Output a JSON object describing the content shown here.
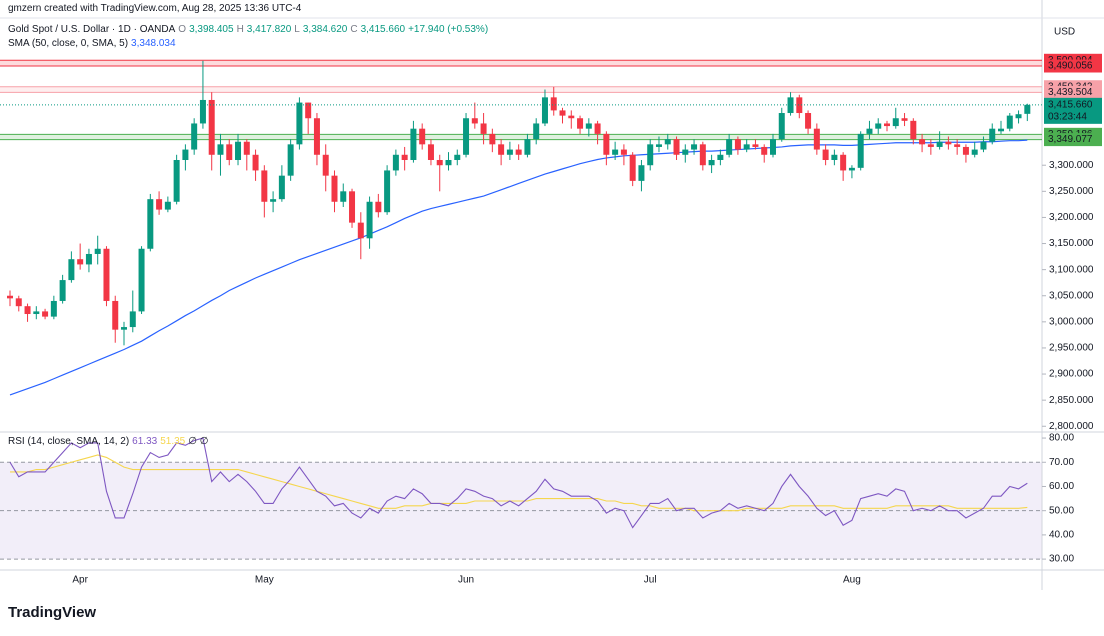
{
  "chart_data": {
    "type": "candlestick",
    "header": "gmzern created with TradingView.com, Aug 28, 2025 13:36 UTC-4",
    "brand": "TradingView",
    "currency": "USD",
    "legend": {
      "symbol": "Gold Spot / U.S. Dollar · 1D · OANDA",
      "items": [
        {
          "key": "O",
          "value": "3,398.405"
        },
        {
          "key": "H",
          "value": "3,417.820"
        },
        {
          "key": "L",
          "value": "3,384.620"
        },
        {
          "key": "C",
          "value": "3,415.660"
        }
      ],
      "change": "+17.940 (+0.53%)"
    },
    "colors": {
      "up": "#089981",
      "down": "#f23645"
    },
    "categories": [
      null,
      null,
      null,
      null,
      null,
      null,
      null,
      null,
      "Apr",
      null,
      null,
      null,
      null,
      null,
      null,
      null,
      null,
      null,
      null,
      null,
      null,
      null,
      null,
      null,
      null,
      null,
      null,
      null,
      null,
      "May",
      null,
      null,
      null,
      null,
      null,
      null,
      null,
      null,
      null,
      null,
      null,
      null,
      null,
      null,
      null,
      null,
      null,
      null,
      null,
      null,
      null,
      null,
      "Jun",
      null,
      null,
      null,
      null,
      null,
      null,
      null,
      null,
      null,
      null,
      null,
      null,
      null,
      null,
      null,
      null,
      null,
      null,
      null,
      null,
      "Jul",
      null,
      null,
      null,
      null,
      null,
      null,
      null,
      null,
      null,
      null,
      null,
      null,
      null,
      null,
      null,
      null,
      null,
      null,
      null,
      null,
      null,
      null,
      "Aug",
      null,
      null,
      null,
      null,
      null,
      null,
      null,
      null,
      null,
      null,
      null,
      null,
      null,
      null,
      null,
      null,
      null,
      null,
      null,
      null
    ],
    "candles": [
      [
        3050,
        3060,
        3030,
        3045
      ],
      [
        3045,
        3050,
        3020,
        3030
      ],
      [
        3030,
        3035,
        3000,
        3015
      ],
      [
        3015,
        3030,
        3005,
        3020
      ],
      [
        3020,
        3025,
        3005,
        3010
      ],
      [
        3010,
        3050,
        3005,
        3040
      ],
      [
        3040,
        3090,
        3035,
        3080
      ],
      [
        3080,
        3135,
        3075,
        3120
      ],
      [
        3120,
        3150,
        3100,
        3110
      ],
      [
        3110,
        3140,
        3095,
        3130
      ],
      [
        3130,
        3165,
        3110,
        3140
      ],
      [
        3140,
        3145,
        3030,
        3040
      ],
      [
        3040,
        3050,
        2960,
        2985
      ],
      [
        2985,
        3000,
        2955,
        2990
      ],
      [
        2990,
        3060,
        2980,
        3020
      ],
      [
        3020,
        3145,
        3015,
        3140
      ],
      [
        3140,
        3245,
        3135,
        3235
      ],
      [
        3235,
        3250,
        3205,
        3215
      ],
      [
        3215,
        3240,
        3210,
        3230
      ],
      [
        3230,
        3320,
        3225,
        3310
      ],
      [
        3310,
        3340,
        3290,
        3330
      ],
      [
        3330,
        3390,
        3320,
        3380
      ],
      [
        3380,
        3500,
        3370,
        3425
      ],
      [
        3425,
        3440,
        3290,
        3320
      ],
      [
        3320,
        3360,
        3280,
        3340
      ],
      [
        3340,
        3350,
        3300,
        3310
      ],
      [
        3310,
        3360,
        3300,
        3345
      ],
      [
        3345,
        3350,
        3290,
        3320
      ],
      [
        3320,
        3330,
        3270,
        3290
      ],
      [
        3290,
        3300,
        3200,
        3230
      ],
      [
        3230,
        3250,
        3210,
        3235
      ],
      [
        3235,
        3300,
        3230,
        3280
      ],
      [
        3280,
        3350,
        3270,
        3340
      ],
      [
        3340,
        3430,
        3330,
        3420
      ],
      [
        3420,
        3420,
        3360,
        3390
      ],
      [
        3390,
        3400,
        3300,
        3320
      ],
      [
        3320,
        3340,
        3250,
        3280
      ],
      [
        3280,
        3290,
        3210,
        3230
      ],
      [
        3230,
        3265,
        3220,
        3250
      ],
      [
        3250,
        3255,
        3180,
        3190
      ],
      [
        3190,
        3210,
        3120,
        3160
      ],
      [
        3160,
        3240,
        3140,
        3230
      ],
      [
        3230,
        3245,
        3200,
        3210
      ],
      [
        3210,
        3300,
        3205,
        3290
      ],
      [
        3290,
        3330,
        3280,
        3320
      ],
      [
        3320,
        3335,
        3290,
        3310
      ],
      [
        3310,
        3385,
        3305,
        3370
      ],
      [
        3370,
        3380,
        3330,
        3340
      ],
      [
        3340,
        3350,
        3300,
        3310
      ],
      [
        3310,
        3320,
        3250,
        3300
      ],
      [
        3300,
        3325,
        3290,
        3310
      ],
      [
        3310,
        3330,
        3300,
        3320
      ],
      [
        3320,
        3400,
        3315,
        3390
      ],
      [
        3390,
        3420,
        3370,
        3380
      ],
      [
        3380,
        3400,
        3340,
        3360
      ],
      [
        3360,
        3370,
        3325,
        3340
      ],
      [
        3340,
        3350,
        3300,
        3320
      ],
      [
        3320,
        3345,
        3310,
        3330
      ],
      [
        3330,
        3340,
        3310,
        3320
      ],
      [
        3320,
        3360,
        3315,
        3350
      ],
      [
        3350,
        3390,
        3340,
        3380
      ],
      [
        3380,
        3445,
        3375,
        3430
      ],
      [
        3430,
        3450,
        3395,
        3405
      ],
      [
        3405,
        3410,
        3380,
        3395
      ],
      [
        3395,
        3405,
        3370,
        3390
      ],
      [
        3390,
        3395,
        3360,
        3370
      ],
      [
        3370,
        3390,
        3355,
        3380
      ],
      [
        3380,
        3385,
        3340,
        3360
      ],
      [
        3360,
        3365,
        3300,
        3320
      ],
      [
        3320,
        3345,
        3310,
        3330
      ],
      [
        3330,
        3340,
        3300,
        3320
      ],
      [
        3320,
        3325,
        3260,
        3270
      ],
      [
        3270,
        3310,
        3250,
        3300
      ],
      [
        3300,
        3350,
        3290,
        3340
      ],
      [
        3335,
        3355,
        3325,
        3340
      ],
      [
        3340,
        3360,
        3330,
        3350
      ],
      [
        3350,
        3355,
        3310,
        3320
      ],
      [
        3320,
        3340,
        3305,
        3330
      ],
      [
        3330,
        3350,
        3320,
        3340
      ],
      [
        3340,
        3345,
        3290,
        3300
      ],
      [
        3300,
        3320,
        3285,
        3310
      ],
      [
        3310,
        3330,
        3300,
        3320
      ],
      [
        3320,
        3360,
        3315,
        3350
      ],
      [
        3350,
        3355,
        3320,
        3330
      ],
      [
        3330,
        3350,
        3325,
        3340
      ],
      [
        3340,
        3350,
        3330,
        3335
      ],
      [
        3335,
        3340,
        3305,
        3320
      ],
      [
        3320,
        3360,
        3315,
        3350
      ],
      [
        3350,
        3410,
        3345,
        3400
      ],
      [
        3400,
        3440,
        3395,
        3430
      ],
      [
        3430,
        3435,
        3390,
        3400
      ],
      [
        3400,
        3405,
        3360,
        3370
      ],
      [
        3370,
        3380,
        3320,
        3330
      ],
      [
        3330,
        3340,
        3300,
        3310
      ],
      [
        3310,
        3330,
        3300,
        3320
      ],
      [
        3320,
        3325,
        3270,
        3290
      ],
      [
        3290,
        3300,
        3275,
        3295
      ],
      [
        3295,
        3365,
        3290,
        3360
      ],
      [
        3360,
        3385,
        3350,
        3370
      ],
      [
        3370,
        3390,
        3360,
        3380
      ],
      [
        3380,
        3385,
        3365,
        3375
      ],
      [
        3375,
        3410,
        3370,
        3390
      ],
      [
        3390,
        3400,
        3375,
        3385
      ],
      [
        3385,
        3390,
        3340,
        3350
      ],
      [
        3350,
        3360,
        3325,
        3340
      ],
      [
        3340,
        3350,
        3320,
        3335
      ],
      [
        3335,
        3365,
        3330,
        3345
      ],
      [
        3345,
        3355,
        3330,
        3340
      ],
      [
        3340,
        3350,
        3320,
        3335
      ],
      [
        3335,
        3340,
        3305,
        3320
      ],
      [
        3320,
        3345,
        3315,
        3330
      ],
      [
        3330,
        3355,
        3325,
        3345
      ],
      [
        3345,
        3380,
        3340,
        3370
      ],
      [
        3365,
        3385,
        3360,
        3370
      ],
      [
        3370,
        3400,
        3365,
        3395
      ],
      [
        3390,
        3405,
        3380,
        3397.72
      ],
      [
        3398.405,
        3417.82,
        3384.62,
        3415.66
      ]
    ],
    "sma": {
      "name": "SMA (50, close, 0, SMA, 5)",
      "value_label": "3,348.034",
      "color": "#2962ff",
      "values": [
        2860,
        2866,
        2872,
        2878,
        2884,
        2891,
        2898,
        2905,
        2912,
        2919,
        2926,
        2933,
        2940,
        2947,
        2955,
        2963,
        2973,
        2983,
        2992,
        3002,
        3012,
        3021,
        3031,
        3041,
        3050,
        3060,
        3068,
        3076,
        3084,
        3091,
        3098,
        3105,
        3112,
        3119,
        3125,
        3131,
        3137,
        3143,
        3149,
        3155,
        3161,
        3168,
        3175,
        3182,
        3190,
        3198,
        3205,
        3212,
        3217,
        3221,
        3225,
        3229,
        3233,
        3237,
        3241,
        3247,
        3253,
        3259,
        3265,
        3271,
        3277,
        3283,
        3288,
        3293,
        3298,
        3303,
        3307,
        3311,
        3314,
        3316,
        3318,
        3319,
        3320,
        3321,
        3322,
        3323,
        3324,
        3325,
        3326,
        3327,
        3327,
        3328,
        3329,
        3330,
        3331,
        3332,
        3333,
        3334,
        3335,
        3337,
        3338,
        3339,
        3339,
        3339,
        3339,
        3338,
        3338,
        3339,
        3340,
        3341,
        3342,
        3343,
        3343,
        3343,
        3343,
        3343,
        3344,
        3344,
        3344,
        3344,
        3344,
        3345,
        3345,
        3346,
        3347,
        3347,
        3348.034
      ]
    },
    "ylim": [
      2789,
      3582
    ],
    "yticks": [
      {
        "value": 3300,
        "label": "3,300.000"
      },
      {
        "value": 3250,
        "label": "3,250.000"
      },
      {
        "value": 3200,
        "label": "3,200.000"
      },
      {
        "value": 3150,
        "label": "3,150.000"
      },
      {
        "value": 3100,
        "label": "3,100.000"
      },
      {
        "value": 3050,
        "label": "3,050.000"
      },
      {
        "value": 3000,
        "label": "3,000.000"
      },
      {
        "value": 2950,
        "label": "2,950.000"
      },
      {
        "value": 2900,
        "label": "2,900.000"
      },
      {
        "value": 2850,
        "label": "2,850.000"
      },
      {
        "value": 2800,
        "label": "2,800.000"
      }
    ],
    "zones": [
      {
        "upper": {
          "value": 3500.994,
          "label": "3,500.994"
        },
        "lower": {
          "value": 3490.056,
          "label": "3,490.056"
        },
        "color": "#f23645"
      },
      {
        "upper": {
          "value": 3450.342,
          "label": "3,450.342"
        },
        "lower": {
          "value": 3439.504,
          "label": "3,439.504"
        },
        "color": "#f7a1a8"
      },
      {
        "upper": {
          "value": 3359.186,
          "label": "3,359.186"
        },
        "lower": {
          "value": 3349.077,
          "label": "3,349.077"
        },
        "color": "#4caf50"
      }
    ],
    "last_price": {
      "value": 3415.66,
      "label": "3,415.660",
      "countdown": "03:23:44",
      "color": "#089981"
    },
    "rsi": {
      "name": "RSI (14, close, SMA, 14, 2)",
      "last_labels": [
        "61.33",
        "51.35"
      ],
      "extra": "∅ ∅",
      "color": "#7e57c2",
      "sma_color": "#f5d64e",
      "values": [
        70,
        64,
        66,
        66,
        66,
        70,
        74,
        78,
        76,
        78,
        78,
        58,
        47,
        47,
        57,
        68,
        74,
        72,
        73,
        78,
        77,
        79,
        80,
        62,
        66,
        62,
        65,
        62,
        58,
        53,
        53,
        59,
        63,
        68,
        63,
        58,
        56,
        52,
        53,
        49,
        47,
        51,
        49,
        54,
        56,
        55,
        59,
        57,
        53,
        53,
        52,
        55,
        59,
        58,
        56,
        55,
        52,
        54,
        52,
        55,
        58,
        63,
        59,
        58,
        56,
        56,
        56,
        54,
        49,
        51,
        50,
        43,
        48,
        53,
        53,
        55,
        50,
        51,
        51,
        47,
        49,
        50,
        53,
        51,
        52,
        51,
        50,
        53,
        60,
        65,
        60,
        56,
        51,
        48,
        50,
        44,
        46,
        55,
        56,
        57,
        56,
        59,
        58,
        50,
        51,
        50,
        52,
        50,
        50,
        47,
        49,
        51,
        56,
        56,
        60,
        59,
        61.33
      ],
      "sma_values": [
        66,
        66,
        66,
        67,
        67,
        68,
        69,
        70,
        71,
        72,
        73,
        72,
        70,
        68,
        67,
        67,
        67,
        67,
        67,
        67,
        67,
        67,
        67,
        67,
        67,
        67,
        67,
        66,
        65,
        64,
        63,
        62,
        61,
        60,
        59,
        58,
        57,
        56,
        55,
        54,
        53,
        52,
        51,
        51,
        51,
        52,
        52,
        52,
        53,
        53,
        53,
        53,
        53,
        54,
        54,
        54,
        54,
        54,
        54,
        54,
        55,
        55,
        55,
        55,
        55,
        55,
        55,
        55,
        54,
        54,
        53,
        53,
        52,
        52,
        51,
        51,
        51,
        51,
        50,
        50,
        50,
        50,
        50,
        50,
        51,
        51,
        51,
        51,
        51,
        52,
        52,
        52,
        52,
        52,
        52,
        51,
        51,
        51,
        51,
        51,
        51,
        52,
        52,
        52,
        52,
        52,
        52,
        52,
        51,
        51,
        51,
        51,
        51,
        51,
        51,
        51,
        51.35
      ],
      "ylim": [
        25.5,
        82.5
      ],
      "yticks": [
        {
          "value": 80,
          "label": "80.00"
        },
        {
          "value": 70,
          "label": "70.00"
        },
        {
          "value": 60,
          "label": "60.00"
        },
        {
          "value": 50,
          "label": "50.00"
        },
        {
          "value": 40,
          "label": "40.00"
        },
        {
          "value": 30,
          "label": "30.00"
        }
      ],
      "band": [
        {
          "value": 30
        },
        {
          "value": 70
        }
      ],
      "dashed": [
        {
          "value": 70
        },
        {
          "value": 50
        },
        {
          "value": 30
        }
      ]
    }
  }
}
